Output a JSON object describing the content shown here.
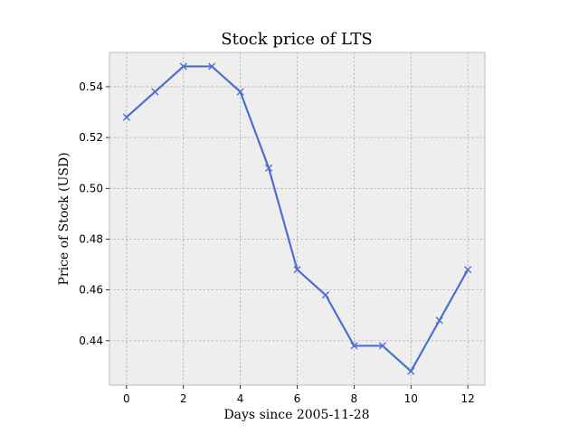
{
  "chart_data": {
    "type": "line",
    "title": "Stock price of LTS",
    "xlabel": "Days since 2005-11-28",
    "ylabel": "Price of Stock (USD)",
    "x": [
      0,
      1,
      2,
      3,
      4,
      5,
      6,
      7,
      8,
      9,
      10,
      11,
      12
    ],
    "series": [
      {
        "name": "LTS",
        "values": [
          0.528,
          0.538,
          0.548,
          0.548,
          0.538,
          0.508,
          0.468,
          0.458,
          0.438,
          0.438,
          0.428,
          0.448,
          0.468
        ],
        "color": "#4c6fcf",
        "marker": "x"
      }
    ],
    "xlim": [
      -0.6,
      12.6
    ],
    "ylim": [
      0.4225,
      0.5535
    ],
    "xticks": [
      0,
      2,
      4,
      6,
      8,
      10,
      12
    ],
    "xtick_labels": [
      "0",
      "2",
      "4",
      "6",
      "8",
      "10",
      "12"
    ],
    "yticks": [
      0.44,
      0.46,
      0.48,
      0.5,
      0.52,
      0.54
    ],
    "ytick_labels": [
      "0.44",
      "0.46",
      "0.48",
      "0.50",
      "0.52",
      "0.54"
    ],
    "grid": true,
    "colors": {
      "background": "#eeeeee",
      "frame": "#bcbcbc",
      "grid": "#b0b0b0"
    }
  }
}
